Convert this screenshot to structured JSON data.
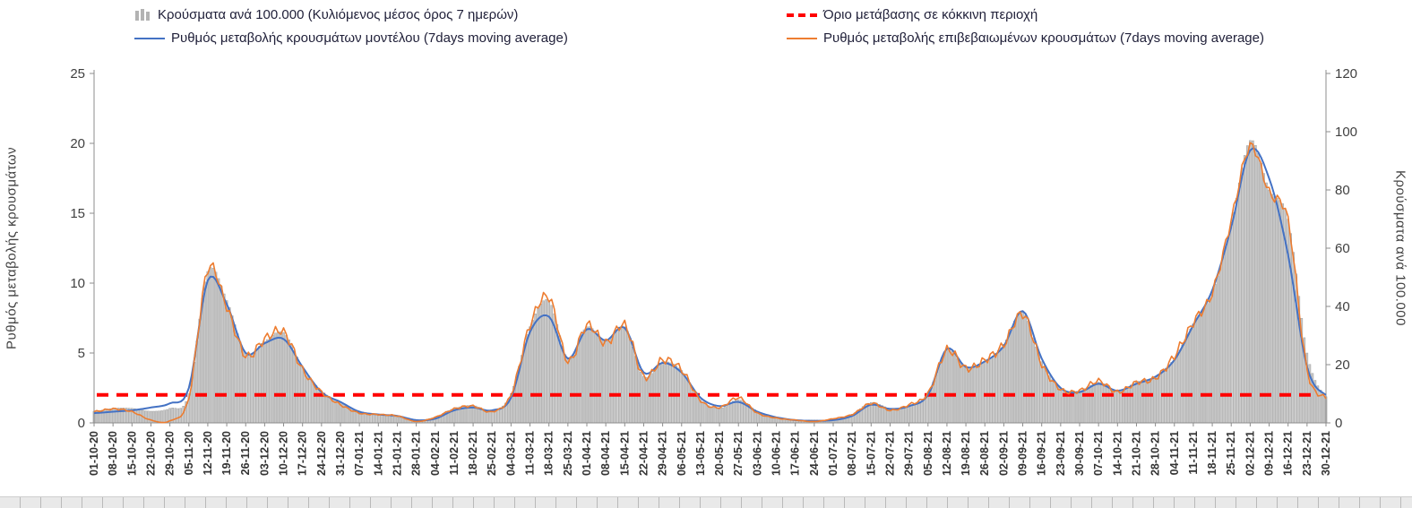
{
  "legend": {
    "bars": "Κρούσματα ανά 100.000 (Κυλιόμενος μέσος όρος 7 ημερών)",
    "threshold": "Όριο μετάβασης σε κόκκινη περιοχή",
    "model": "Ρυθμός μεταβολής κρουσμάτων μοντέλου (7days moving average)",
    "confirmed": "Ρυθμός μεταβολής επιβεβαιωμένων κρουσμάτων (7days moving average)"
  },
  "colors": {
    "bar": "#c6c6c6",
    "bar_stroke": "#979797",
    "model": "#4472c4",
    "confirmed": "#ed7d31",
    "threshold": "#ff0000",
    "axis": "#8c8c8c",
    "text": "#404040",
    "xlabel": "#333333"
  },
  "chart_data": {
    "type": "combo",
    "title": "",
    "left_axis": {
      "label": "Ρυθμός μεταβολής κρουσμάτων",
      "range": [
        0,
        25
      ],
      "ticks": [
        0,
        5,
        10,
        15,
        20,
        25
      ]
    },
    "right_axis": {
      "label": "Κρούσματα ανά 100.000",
      "range": [
        0,
        120
      ],
      "ticks": [
        0,
        20,
        40,
        60,
        80,
        100,
        120
      ]
    },
    "threshold": {
      "label": "Όριο μετάβασης σε κόκκινη περιοχή",
      "value": 2,
      "axis": "left"
    },
    "x": [
      "01-10-20",
      "08-10-20",
      "15-10-20",
      "22-10-20",
      "29-10-20",
      "05-11-20",
      "12-11-20",
      "19-11-20",
      "26-11-20",
      "03-12-20",
      "10-12-20",
      "17-12-20",
      "24-12-20",
      "31-12-20",
      "07-01-21",
      "14-01-21",
      "21-01-21",
      "28-01-21",
      "04-02-21",
      "11-02-21",
      "18-02-21",
      "25-02-21",
      "04-03-21",
      "11-03-21",
      "18-03-21",
      "25-03-21",
      "01-04-21",
      "08-04-21",
      "15-04-21",
      "22-04-21",
      "29-04-21",
      "06-05-21",
      "13-05-21",
      "20-05-21",
      "27-05-21",
      "03-06-21",
      "10-06-21",
      "17-06-21",
      "24-06-21",
      "01-07-21",
      "08-07-21",
      "15-07-21",
      "22-07-21",
      "29-07-21",
      "05-08-21",
      "12-08-21",
      "19-08-21",
      "26-08-21",
      "02-09-21",
      "09-09-21",
      "16-09-21",
      "23-09-21",
      "30-09-21",
      "07-10-21",
      "14-10-21",
      "21-10-21",
      "28-10-21",
      "04-11-21",
      "11-11-21",
      "18-11-21",
      "25-11-21",
      "02-12-21",
      "09-12-21",
      "16-12-21",
      "23-12-21",
      "30-12-21"
    ],
    "series": [
      {
        "name": "Κρούσματα ανά 100.000 (Κυλιόμενος μέσος όρος 7 ημερών)",
        "type": "bar",
        "axis": "right",
        "values": [
          4,
          5,
          5,
          4,
          5,
          10,
          52,
          42,
          24,
          28,
          31,
          19,
          11,
          7,
          4,
          3,
          2,
          1,
          2,
          5,
          6,
          4,
          10,
          33,
          42,
          22,
          33,
          28,
          33,
          16,
          21,
          18,
          8,
          5,
          8,
          4,
          2,
          1,
          1,
          1,
          3,
          7,
          5,
          6,
          10,
          25,
          19,
          21,
          27,
          38,
          21,
          12,
          11,
          14,
          11,
          14,
          16,
          22,
          34,
          45,
          68,
          97,
          80,
          70,
          24,
          9
        ]
      },
      {
        "name": "Ρυθμός μεταβολής κρουσμάτων μοντέλου (7days moving average)",
        "type": "line",
        "axis": "left",
        "color": "#4472c4",
        "jitter": false,
        "values": [
          0.7,
          0.8,
          0.9,
          1.1,
          1.4,
          2.5,
          10.2,
          8.5,
          5.0,
          5.7,
          6.0,
          4.0,
          2.2,
          1.5,
          0.8,
          0.6,
          0.5,
          0.2,
          0.3,
          0.9,
          1.1,
          0.9,
          1.8,
          6.5,
          7.6,
          4.6,
          6.7,
          5.9,
          6.8,
          3.6,
          4.3,
          3.6,
          1.8,
          1.2,
          1.5,
          0.8,
          0.4,
          0.2,
          0.15,
          0.2,
          0.5,
          1.3,
          1.0,
          1.2,
          2.0,
          5.3,
          4.0,
          4.4,
          5.5,
          8.0,
          4.6,
          2.5,
          2.2,
          2.8,
          2.3,
          2.8,
          3.3,
          4.5,
          7.0,
          9.5,
          14.0,
          19.5,
          17.5,
          12.0,
          4.0,
          2.0
        ]
      },
      {
        "name": "Ρυθμός μεταβολής επιβεβαιωμένων κρουσμάτων (7days moving average)",
        "type": "line",
        "axis": "left",
        "color": "#ed7d31",
        "jitter": true,
        "values": [
          0.8,
          1.0,
          0.8,
          0.2,
          0.15,
          1.8,
          11.0,
          8.3,
          4.8,
          6.0,
          6.5,
          3.8,
          2.2,
          1.3,
          0.7,
          0.6,
          0.5,
          0.1,
          0.4,
          1.0,
          1.2,
          0.8,
          2.0,
          7.0,
          9.0,
          4.4,
          7.0,
          5.7,
          7.0,
          3.3,
          4.5,
          3.8,
          1.6,
          1.1,
          1.8,
          0.7,
          0.35,
          0.2,
          0.1,
          0.3,
          0.6,
          1.4,
          0.9,
          1.3,
          2.1,
          5.2,
          3.9,
          4.5,
          5.6,
          7.8,
          4.2,
          2.4,
          2.3,
          3.0,
          2.2,
          2.9,
          3.2,
          4.8,
          7.2,
          9.3,
          14.5,
          19.8,
          16.5,
          14.5,
          3.8,
          1.8
        ]
      }
    ]
  }
}
